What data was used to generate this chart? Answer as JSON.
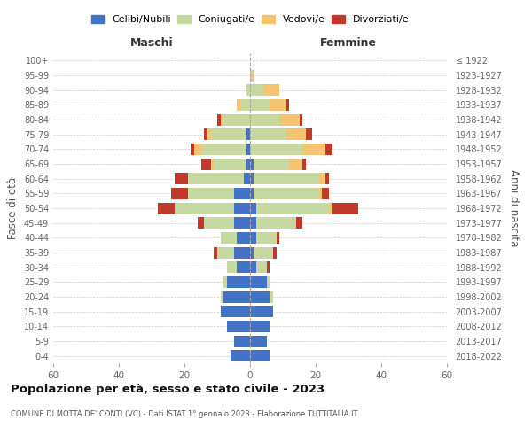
{
  "age_groups": [
    "0-4",
    "5-9",
    "10-14",
    "15-19",
    "20-24",
    "25-29",
    "30-34",
    "35-39",
    "40-44",
    "45-49",
    "50-54",
    "55-59",
    "60-64",
    "65-69",
    "70-74",
    "75-79",
    "80-84",
    "85-89",
    "90-94",
    "95-99",
    "100+"
  ],
  "birth_years": [
    "2018-2022",
    "2013-2017",
    "2008-2012",
    "2003-2007",
    "1998-2002",
    "1993-1997",
    "1988-1992",
    "1983-1987",
    "1978-1982",
    "1973-1977",
    "1968-1972",
    "1963-1967",
    "1958-1962",
    "1953-1957",
    "1948-1952",
    "1943-1947",
    "1938-1942",
    "1933-1937",
    "1928-1932",
    "1923-1927",
    "≤ 1922"
  ],
  "colors": {
    "celibi": "#4472c4",
    "coniugati": "#c5d9a0",
    "vedovi": "#f5c470",
    "divorziati": "#c0392b"
  },
  "maschi": {
    "celibi": [
      6,
      5,
      7,
      9,
      8,
      7,
      4,
      5,
      4,
      5,
      5,
      5,
      2,
      1,
      1,
      1,
      0,
      0,
      0,
      0,
      0
    ],
    "coniugati": [
      0,
      0,
      0,
      0,
      1,
      1,
      3,
      5,
      5,
      9,
      18,
      14,
      17,
      10,
      14,
      11,
      8,
      3,
      1,
      0,
      0
    ],
    "vedovi": [
      0,
      0,
      0,
      0,
      0,
      0,
      0,
      0,
      0,
      0,
      0,
      0,
      0,
      1,
      2,
      1,
      1,
      1,
      0,
      0,
      0
    ],
    "divorziati": [
      0,
      0,
      0,
      0,
      0,
      0,
      0,
      1,
      0,
      2,
      5,
      5,
      4,
      3,
      1,
      1,
      1,
      0,
      0,
      0,
      0
    ]
  },
  "femmine": {
    "nubili": [
      6,
      5,
      6,
      7,
      6,
      5,
      2,
      1,
      2,
      2,
      2,
      1,
      1,
      1,
      0,
      0,
      0,
      0,
      0,
      0,
      0
    ],
    "coniugate": [
      0,
      0,
      0,
      0,
      1,
      1,
      3,
      6,
      6,
      12,
      22,
      20,
      20,
      11,
      16,
      11,
      9,
      6,
      4,
      0,
      0
    ],
    "vedove": [
      0,
      0,
      0,
      0,
      0,
      0,
      0,
      0,
      0,
      0,
      1,
      1,
      2,
      4,
      7,
      6,
      6,
      5,
      5,
      1,
      0
    ],
    "divorziate": [
      0,
      0,
      0,
      0,
      0,
      0,
      1,
      1,
      1,
      2,
      8,
      2,
      1,
      1,
      2,
      2,
      1,
      1,
      0,
      0,
      0
    ]
  },
  "title": "Popolazione per età, sesso e stato civile - 2023",
  "subtitle": "COMUNE DI MOTTA DE' CONTI (VC) - Dati ISTAT 1° gennaio 2023 - Elaborazione TUTTITALIA.IT",
  "xlabel_left": "Maschi",
  "xlabel_right": "Femmine",
  "ylabel_left": "Fasce di età",
  "ylabel_right": "Anni di nascita",
  "xlim": 60,
  "legend_labels": [
    "Celibi/Nubili",
    "Coniugati/e",
    "Vedovi/e",
    "Divorziati/e"
  ],
  "background_color": "#ffffff",
  "grid_color": "#cccccc"
}
